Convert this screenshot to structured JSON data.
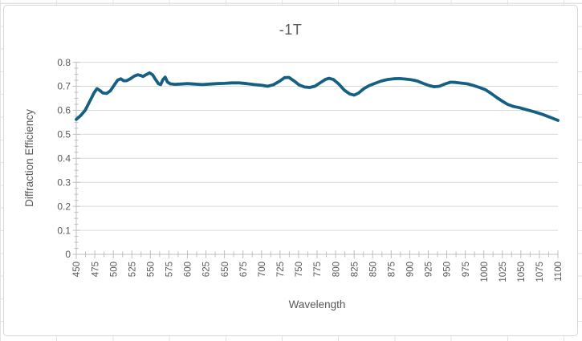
{
  "window": {
    "kind": "spreadsheet-embedded-chart"
  },
  "colors": {
    "series": "#156082",
    "gridline": "#d9d9d9",
    "axis": "#bfbfbf",
    "tick": "#bfbfbf",
    "label": "#595959",
    "chart_border": "#d7d7d7",
    "sheet_grid": "#e3e3e3",
    "background": "#ffffff"
  },
  "chart_data": {
    "type": "line",
    "title": "-1T",
    "xlabel": "Wavelength",
    "ylabel": "Diffraction Efficiency",
    "legend": "none",
    "grid": "horizontal",
    "xlim": [
      450,
      1100
    ],
    "ylim": [
      0,
      0.8
    ],
    "x_tick_labels": [
      "450",
      "475",
      "500",
      "525",
      "550",
      "575",
      "600",
      "625",
      "650",
      "675",
      "700",
      "725",
      "750",
      "775",
      "800",
      "825",
      "850",
      "875",
      "900",
      "925",
      "950",
      "975",
      "1000",
      "1025",
      "1050",
      "1075",
      "1100"
    ],
    "x_tick_values": [
      450,
      475,
      500,
      525,
      550,
      575,
      600,
      625,
      650,
      675,
      700,
      725,
      750,
      775,
      800,
      825,
      850,
      875,
      900,
      925,
      950,
      975,
      1000,
      1025,
      1050,
      1075,
      1100
    ],
    "x_minor_step": 12.5,
    "y_tick_labels": [
      "0",
      "0.1",
      "0.2",
      "0.3",
      "0.4",
      "0.5",
      "0.6",
      "0.7",
      "0.8"
    ],
    "y_tick_values": [
      0,
      0.1,
      0.2,
      0.3,
      0.4,
      0.5,
      0.6,
      0.7,
      0.8
    ],
    "y_minor_step": 0.025,
    "series": [
      {
        "name": "-1T",
        "color": "#156082",
        "x": [
          450,
          456,
          462,
          468,
          474,
          478,
          482,
          486,
          491,
          496,
          501,
          506,
          510,
          514,
          518,
          523,
          528,
          533,
          537,
          540,
          544,
          549,
          553,
          557,
          561,
          564,
          567,
          570,
          573,
          577,
          583,
          590,
          600,
          610,
          620,
          630,
          640,
          650,
          660,
          670,
          680,
          690,
          700,
          708,
          716,
          725,
          731,
          737,
          744,
          751,
          758,
          765,
          772,
          780,
          786,
          791,
          797,
          804,
          812,
          819,
          825,
          831,
          838,
          845,
          853,
          862,
          870,
          878,
          886,
          894,
          902,
          910,
          918,
          926,
          933,
          940,
          948,
          955,
          962,
          970,
          978,
          986,
          994,
          1002,
          1010,
          1018,
          1025,
          1032,
          1040,
          1048,
          1056,
          1064,
          1072,
          1080,
          1090,
          1100
        ],
        "y": [
          0.562,
          0.578,
          0.6,
          0.636,
          0.673,
          0.69,
          0.682,
          0.672,
          0.67,
          0.681,
          0.704,
          0.726,
          0.731,
          0.723,
          0.723,
          0.731,
          0.742,
          0.748,
          0.745,
          0.741,
          0.748,
          0.756,
          0.748,
          0.728,
          0.71,
          0.707,
          0.728,
          0.738,
          0.718,
          0.71,
          0.708,
          0.709,
          0.711,
          0.709,
          0.707,
          0.709,
          0.711,
          0.712,
          0.714,
          0.714,
          0.711,
          0.707,
          0.704,
          0.7,
          0.706,
          0.722,
          0.736,
          0.737,
          0.722,
          0.705,
          0.697,
          0.695,
          0.7,
          0.716,
          0.728,
          0.733,
          0.728,
          0.71,
          0.683,
          0.668,
          0.663,
          0.672,
          0.69,
          0.702,
          0.712,
          0.722,
          0.728,
          0.731,
          0.732,
          0.73,
          0.727,
          0.722,
          0.712,
          0.703,
          0.698,
          0.7,
          0.71,
          0.717,
          0.716,
          0.713,
          0.71,
          0.703,
          0.695,
          0.686,
          0.67,
          0.652,
          0.638,
          0.625,
          0.616,
          0.611,
          0.604,
          0.597,
          0.59,
          0.582,
          0.57,
          0.558
        ]
      }
    ]
  }
}
